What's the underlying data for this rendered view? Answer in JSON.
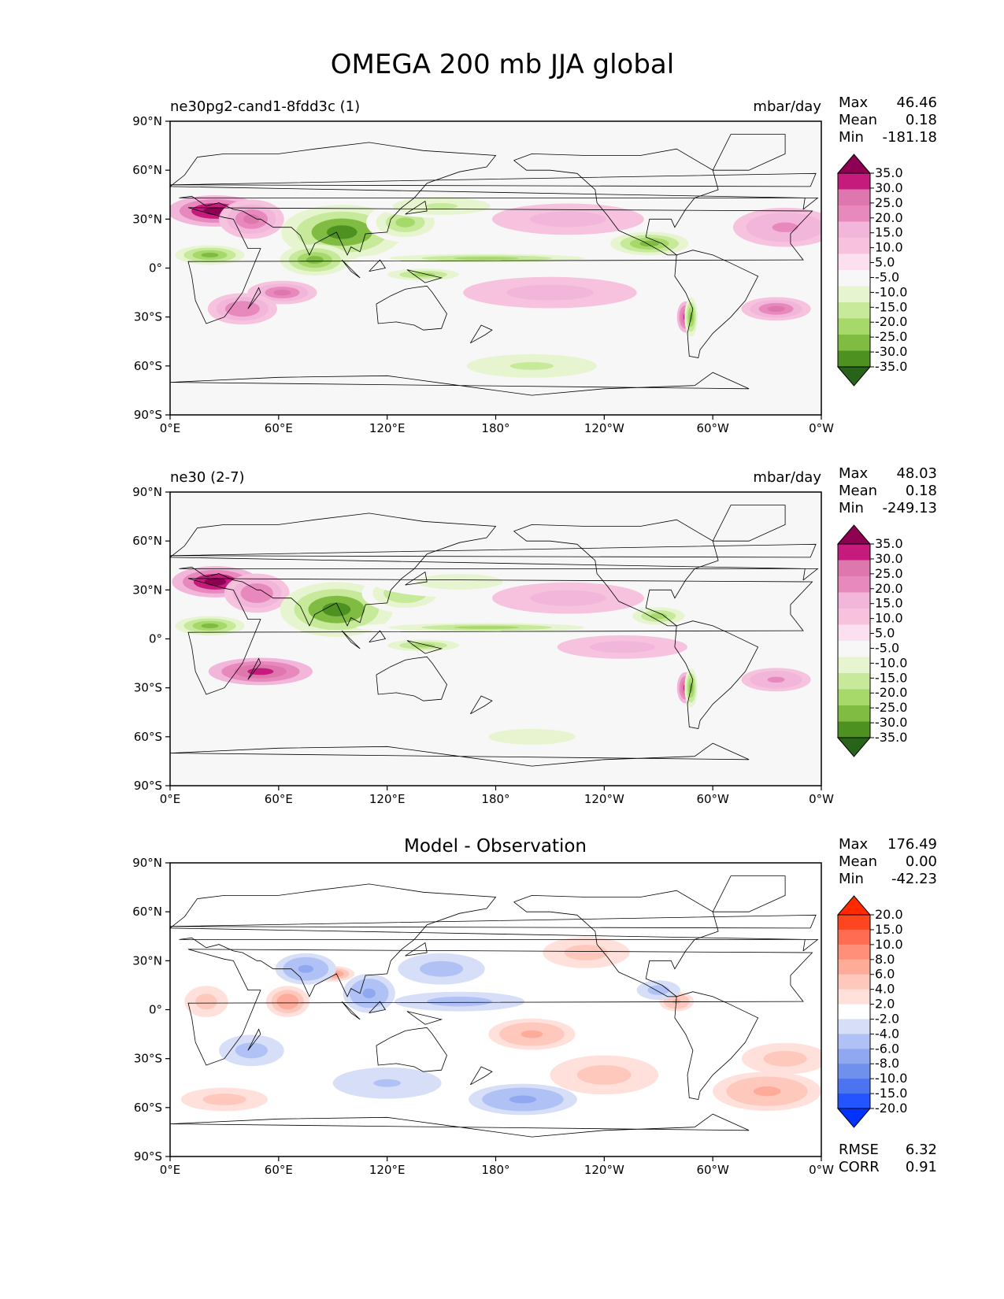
{
  "figure": {
    "title": "OMEGA 200 mb JJA global"
  },
  "x_ticks": [
    "0°E",
    "60°E",
    "120°E",
    "180°",
    "120°W",
    "60°W",
    "0°W"
  ],
  "y_ticks": [
    "90°N",
    "60°N",
    "30°N",
    "0°",
    "30°S",
    "60°S",
    "90°S"
  ],
  "stat_labels": {
    "max": "Max",
    "mean": "Mean",
    "min": "Min",
    "rmse": "RMSE",
    "corr": "CORR"
  },
  "colors": {
    "prgn": [
      "#276419",
      "#4d9221",
      "#7fbc41",
      "#a6d96a",
      "#c7e99a",
      "#e6f5d0",
      "#f7f7f7",
      "#fde0ef",
      "#f6c2dd",
      "#f1b6da",
      "#e889bd",
      "#de77ae",
      "#c51b7d",
      "#8e0152"
    ],
    "bwr": [
      "#0033ff",
      "#2255ff",
      "#4d74f0",
      "#7090ee",
      "#90a8f0",
      "#b0c2f5",
      "#d6def8",
      "#ffffff",
      "#ffe0da",
      "#ffc8bd",
      "#ffab9a",
      "#ff8f78",
      "#ff6c52",
      "#ff4520",
      "#ff2a00"
    ],
    "land_line": "#000000",
    "ocean_bg": "#f7f7f7"
  },
  "chart_data": [
    {
      "type": "heatmap",
      "title": "ne30pg2-cand1-8fdd3c (1)",
      "units": "mbar/day",
      "stats": {
        "max": "46.46",
        "mean": "0.18",
        "min": "-181.18"
      },
      "colorbar_ticks": [
        "35.0",
        "30.0",
        "25.0",
        "20.0",
        "15.0",
        "10.0",
        "5.0",
        "-5.0",
        "-10.0",
        "-15.0",
        "-20.0",
        "-25.0",
        "-30.0",
        "-35.0"
      ],
      "x_range": [
        0,
        360
      ],
      "y_range": [
        -90,
        90
      ],
      "features": [
        {
          "lon": 25,
          "lat": 35,
          "v": 40,
          "rl": 22,
          "rt": 8
        },
        {
          "lon": 45,
          "lat": 30,
          "v": 22,
          "rl": 15,
          "rt": 10
        },
        {
          "lon": 22,
          "lat": 8,
          "v": -30,
          "rl": 16,
          "rt": 5
        },
        {
          "lon": 95,
          "lat": 22,
          "v": -40,
          "rl": 28,
          "rt": 14
        },
        {
          "lon": 80,
          "lat": 5,
          "v": -30,
          "rl": 16,
          "rt": 8
        },
        {
          "lon": 130,
          "lat": 28,
          "v": -25,
          "rl": 18,
          "rt": 10
        },
        {
          "lon": 150,
          "lat": 38,
          "v": -18,
          "rl": 30,
          "rt": 6
        },
        {
          "lon": 175,
          "lat": 6,
          "v": -28,
          "rl": 60,
          "rt": 3
        },
        {
          "lon": 265,
          "lat": 15,
          "v": -30,
          "rl": 18,
          "rt": 6
        },
        {
          "lon": 140,
          "lat": -4,
          "v": -28,
          "rl": 22,
          "rt": 4
        },
        {
          "lon": 62,
          "lat": -15,
          "v": 28,
          "rl": 16,
          "rt": 6
        },
        {
          "lon": 40,
          "lat": -25,
          "v": 20,
          "rl": 16,
          "rt": 8
        },
        {
          "lon": 285,
          "lat": -30,
          "v": 30,
          "rl": 4,
          "rt": 8
        },
        {
          "lon": 288,
          "lat": -30,
          "v": -30,
          "rl": 3,
          "rt": 10
        },
        {
          "lon": 335,
          "lat": -25,
          "v": 22,
          "rl": 16,
          "rt": 6
        },
        {
          "lon": 340,
          "lat": 25,
          "v": 16,
          "rl": 24,
          "rt": 10
        },
        {
          "lon": 200,
          "lat": -60,
          "v": -18,
          "rl": 40,
          "rt": 8
        },
        {
          "lon": 210,
          "lat": -15,
          "v": 14,
          "rl": 40,
          "rt": 8
        },
        {
          "lon": 220,
          "lat": 30,
          "v": 12,
          "rl": 35,
          "rt": 8
        }
      ]
    },
    {
      "type": "heatmap",
      "title": "ne30 (2-7)",
      "units": "mbar/day",
      "stats": {
        "max": "48.03",
        "mean": "0.18",
        "min": "-249.13"
      },
      "colorbar_ticks": [
        "35.0",
        "30.0",
        "25.0",
        "20.0",
        "15.0",
        "10.0",
        "5.0",
        "-5.0",
        "-10.0",
        "-15.0",
        "-20.0",
        "-25.0",
        "-30.0",
        "-35.0"
      ],
      "x_range": [
        0,
        360
      ],
      "y_range": [
        -90,
        90
      ],
      "features": [
        {
          "lon": 25,
          "lat": 35,
          "v": 38,
          "rl": 20,
          "rt": 8
        },
        {
          "lon": 48,
          "lat": 28,
          "v": 20,
          "rl": 15,
          "rt": 10
        },
        {
          "lon": 22,
          "lat": 8,
          "v": -30,
          "rl": 16,
          "rt": 5
        },
        {
          "lon": 92,
          "lat": 18,
          "v": -42,
          "rl": 26,
          "rt": 14
        },
        {
          "lon": 130,
          "lat": 28,
          "v": -20,
          "rl": 20,
          "rt": 10
        },
        {
          "lon": 175,
          "lat": 7,
          "v": -26,
          "rl": 60,
          "rt": 3
        },
        {
          "lon": 270,
          "lat": 14,
          "v": -28,
          "rl": 16,
          "rt": 6
        },
        {
          "lon": 140,
          "lat": -4,
          "v": -26,
          "rl": 22,
          "rt": 4
        },
        {
          "lon": 50,
          "lat": -20,
          "v": 30,
          "rl": 24,
          "rt": 7
        },
        {
          "lon": 285,
          "lat": -30,
          "v": 30,
          "rl": 4,
          "rt": 8
        },
        {
          "lon": 288,
          "lat": -30,
          "v": -30,
          "rl": 3,
          "rt": 10
        },
        {
          "lon": 335,
          "lat": -25,
          "v": 18,
          "rl": 16,
          "rt": 6
        },
        {
          "lon": 160,
          "lat": 35,
          "v": -12,
          "rl": 40,
          "rt": 8
        },
        {
          "lon": 220,
          "lat": 25,
          "v": 14,
          "rl": 35,
          "rt": 8
        },
        {
          "lon": 200,
          "lat": -60,
          "v": -12,
          "rl": 40,
          "rt": 8
        },
        {
          "lon": 250,
          "lat": -5,
          "v": 12,
          "rl": 30,
          "rt": 6
        }
      ]
    },
    {
      "type": "heatmap",
      "title": "Model - Observation",
      "units": "",
      "stats": {
        "max": "176.49",
        "mean": "0.00",
        "min": "-42.23",
        "rmse": "6.32",
        "corr": "0.91"
      },
      "colorbar_ticks": [
        "20.0",
        "15.0",
        "10.0",
        "8.0",
        "6.0",
        "4.0",
        "2.0",
        "-2.0",
        "-4.0",
        "-6.0",
        "-8.0",
        "-10.0",
        "-15.0",
        "-20.0"
      ],
      "x_range": [
        0,
        360
      ],
      "y_range": [
        -90,
        90
      ],
      "features": [
        {
          "lon": 90,
          "lat": 22,
          "v": 22,
          "rl": 10,
          "rt": 4
        },
        {
          "lon": 75,
          "lat": 25,
          "v": -18,
          "rl": 14,
          "rt": 8
        },
        {
          "lon": 65,
          "lat": 5,
          "v": 20,
          "rl": 10,
          "rt": 8
        },
        {
          "lon": 110,
          "lat": 10,
          "v": -15,
          "rl": 12,
          "rt": 10
        },
        {
          "lon": 150,
          "lat": 25,
          "v": -14,
          "rl": 20,
          "rt": 8
        },
        {
          "lon": 160,
          "lat": 5,
          "v": -12,
          "rl": 30,
          "rt": 5
        },
        {
          "lon": 200,
          "lat": -15,
          "v": 15,
          "rl": 20,
          "rt": 8
        },
        {
          "lon": 195,
          "lat": -55,
          "v": -15,
          "rl": 25,
          "rt": 8
        },
        {
          "lon": 280,
          "lat": 5,
          "v": 18,
          "rl": 8,
          "rt": 5
        },
        {
          "lon": 270,
          "lat": 12,
          "v": -14,
          "rl": 10,
          "rt": 5
        },
        {
          "lon": 330,
          "lat": -50,
          "v": 15,
          "rl": 25,
          "rt": 10
        },
        {
          "lon": 340,
          "lat": -30,
          "v": 12,
          "rl": 20,
          "rt": 8
        },
        {
          "lon": 30,
          "lat": -55,
          "v": 12,
          "rl": 20,
          "rt": 6
        },
        {
          "lon": 240,
          "lat": -40,
          "v": 12,
          "rl": 25,
          "rt": 10
        },
        {
          "lon": 45,
          "lat": -25,
          "v": -10,
          "rl": 15,
          "rt": 8
        },
        {
          "lon": 120,
          "lat": -45,
          "v": -8,
          "rl": 25,
          "rt": 8
        },
        {
          "lon": 230,
          "lat": 35,
          "v": 10,
          "rl": 20,
          "rt": 8
        },
        {
          "lon": 20,
          "lat": 5,
          "v": 12,
          "rl": 10,
          "rt": 8
        }
      ]
    }
  ]
}
